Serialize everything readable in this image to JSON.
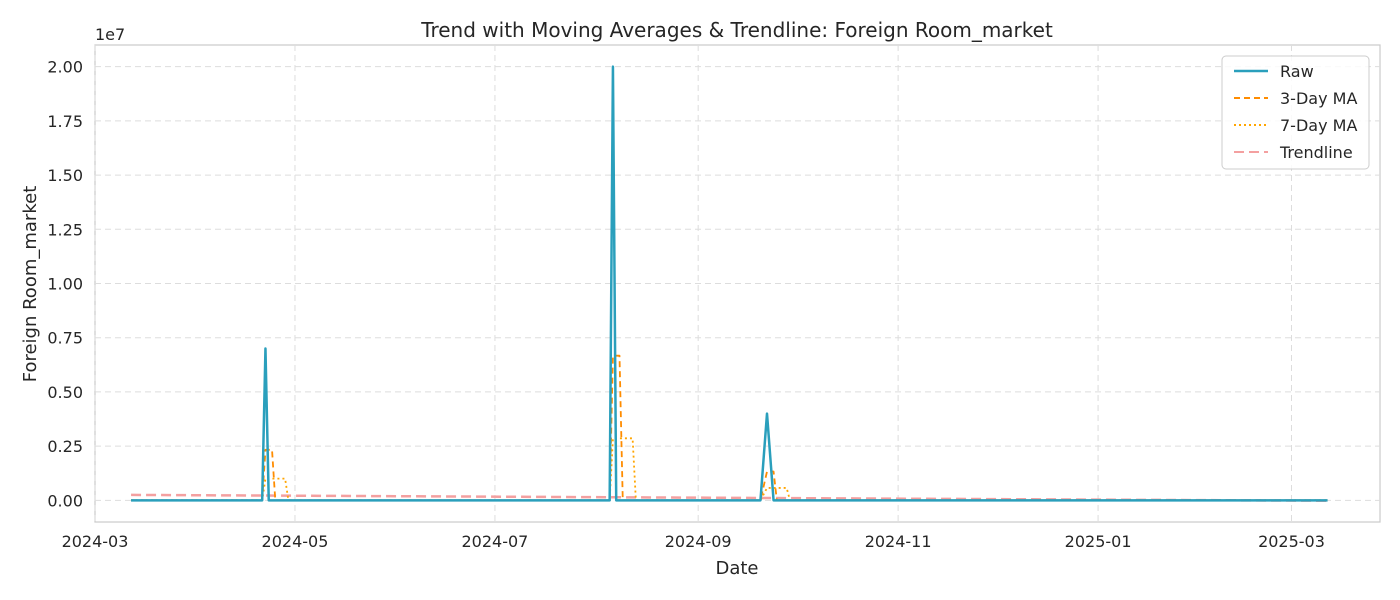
{
  "chart_data": {
    "type": "line",
    "title": "Trend with Moving Averages & Trendline: Foreign Room_market",
    "xlabel": "Date",
    "ylabel": "Foreign Room_market",
    "y_offset_label": "1e7",
    "x_range": [
      "2024-03-01",
      "2025-03-28"
    ],
    "ylim": [
      -1000000,
      21000000
    ],
    "x_ticks": [
      "2024-03-01",
      "2024-05-01",
      "2024-07-01",
      "2024-09-01",
      "2024-11-01",
      "2025-01-01",
      "2025-03-01"
    ],
    "x_tick_labels": [
      "2024-03",
      "2024-05",
      "2024-07",
      "2024-09",
      "2024-11",
      "2025-01",
      "2025-03"
    ],
    "y_ticks": [
      0,
      2500000,
      5000000,
      7500000,
      10000000,
      12500000,
      15000000,
      17500000,
      20000000
    ],
    "y_tick_labels": [
      "0.00",
      "0.25",
      "0.50",
      "0.75",
      "1.00",
      "1.25",
      "1.50",
      "1.75",
      "2.00"
    ],
    "grid": true,
    "legend_position": "top-right",
    "series": [
      {
        "name": "Raw",
        "color": "#2a9fbc",
        "style": "solid",
        "x": [
          "2024-03-12",
          "2024-04-21",
          "2024-04-22",
          "2024-04-23",
          "2024-08-05",
          "2024-08-06",
          "2024-08-07",
          "2024-09-20",
          "2024-09-22",
          "2024-09-24",
          "2025-03-12"
        ],
        "y": [
          0,
          0,
          7000000,
          0,
          0,
          20000000,
          0,
          0,
          4000000,
          0,
          0
        ]
      },
      {
        "name": "3-Day MA",
        "color": "#ff8c00",
        "style": "dashed",
        "x": [
          "2024-03-12",
          "2024-04-21",
          "2024-04-22",
          "2024-04-24",
          "2024-04-25",
          "2024-08-05",
          "2024-08-06",
          "2024-08-08",
          "2024-08-09",
          "2024-09-20",
          "2024-09-22",
          "2024-09-24",
          "2024-09-25",
          "2025-03-12"
        ],
        "y": [
          0,
          0,
          2330000,
          2330000,
          0,
          0,
          6670000,
          6670000,
          0,
          0,
          1330000,
          1330000,
          0,
          0
        ]
      },
      {
        "name": "7-Day MA",
        "color": "#ffa500",
        "style": "dotted",
        "x": [
          "2024-03-12",
          "2024-04-21",
          "2024-04-22",
          "2024-04-28",
          "2024-04-29",
          "2024-08-05",
          "2024-08-06",
          "2024-08-12",
          "2024-08-13",
          "2024-09-20",
          "2024-09-22",
          "2024-09-28",
          "2024-09-29",
          "2025-03-12"
        ],
        "y": [
          0,
          0,
          1000000,
          1000000,
          0,
          0,
          2860000,
          2860000,
          0,
          0,
          570000,
          570000,
          0,
          0
        ]
      },
      {
        "name": "Trendline",
        "color": "#f4a0a0",
        "style": "dashed",
        "x": [
          "2024-03-12",
          "2025-03-12"
        ],
        "y": [
          250000,
          -20000
        ]
      }
    ]
  }
}
